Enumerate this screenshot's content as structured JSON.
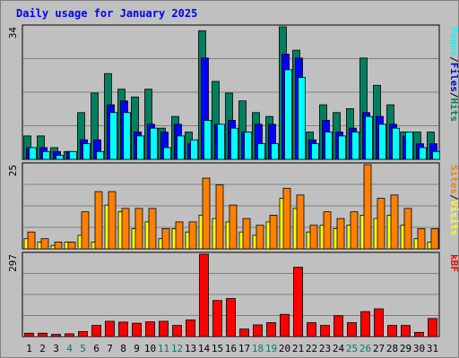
{
  "title": "Daily usage for January 2025",
  "colors": {
    "background": "#c0c0c0",
    "panel": "#c0c0c0",
    "title": "#0000ff",
    "pages": "#00ffff",
    "files": "#0000ff",
    "hits": "#00805f",
    "visits": "#ffff00",
    "sites": "#ff8000",
    "kbytes": "#ff0000",
    "weekend_label": "#00805f",
    "weekday_label": "#000000"
  },
  "chart_data": [
    {
      "type": "bar",
      "name": "hits-files-pages",
      "ymax": 34,
      "ymax_label": "34",
      "legend": [
        "Pages",
        "/",
        "Files",
        "/",
        "Hits"
      ],
      "categories": [
        "1",
        "2",
        "3",
        "4",
        "5",
        "6",
        "7",
        "8",
        "9",
        "10",
        "11",
        "12",
        "13",
        "14",
        "15",
        "16",
        "17",
        "18",
        "19",
        "20",
        "21",
        "22",
        "23",
        "24",
        "25",
        "26",
        "27",
        "28",
        "29",
        "30",
        "31"
      ],
      "series": [
        {
          "name": "Hits",
          "values": [
            6,
            6,
            3,
            2,
            12,
            17,
            22,
            18,
            16,
            18,
            8,
            11,
            7,
            33,
            20,
            17,
            15,
            12,
            11,
            34,
            28,
            7,
            14,
            12,
            13,
            26,
            19,
            14,
            7,
            7,
            7
          ]
        },
        {
          "name": "Files",
          "values": [
            3,
            3,
            2,
            2,
            5,
            5,
            14,
            15,
            7,
            9,
            7,
            9,
            4,
            26,
            9,
            10,
            7,
            9,
            9,
            27,
            26,
            5,
            10,
            7,
            8,
            12,
            11,
            9,
            6,
            4,
            4
          ]
        },
        {
          "name": "Pages",
          "values": [
            3,
            2,
            1,
            2,
            4,
            2,
            12,
            12,
            6,
            8,
            3,
            6,
            5,
            10,
            9,
            8,
            7,
            4,
            4,
            23,
            21,
            4,
            7,
            6,
            7,
            11,
            9,
            8,
            7,
            3,
            2
          ]
        }
      ],
      "weekend_days": [
        4,
        5,
        11,
        12,
        18,
        19,
        25,
        26
      ]
    },
    {
      "type": "bar",
      "name": "sites-visits",
      "ymax": 25,
      "ymax_label": "25",
      "legend": [
        "Sites",
        "/",
        "Visits"
      ],
      "categories": [
        "1",
        "2",
        "3",
        "4",
        "5",
        "6",
        "7",
        "8",
        "9",
        "10",
        "11",
        "12",
        "13",
        "14",
        "15",
        "16",
        "17",
        "18",
        "19",
        "20",
        "21",
        "22",
        "23",
        "24",
        "25",
        "26",
        "27",
        "28",
        "29",
        "30",
        "31"
      ],
      "series": [
        {
          "name": "Sites",
          "values": [
            5,
            3,
            2,
            2,
            11,
            17,
            17,
            12,
            12,
            12,
            6,
            8,
            8,
            21,
            19,
            13,
            9,
            7,
            10,
            18,
            16,
            7,
            11,
            9,
            11,
            25,
            15,
            16,
            12,
            6,
            6
          ]
        },
        {
          "name": "Visits",
          "values": [
            3,
            2,
            1,
            2,
            4,
            2,
            13,
            11,
            6,
            8,
            3,
            6,
            5,
            10,
            9,
            8,
            5,
            4,
            8,
            15,
            12,
            5,
            7,
            6,
            7,
            10,
            9,
            10,
            7,
            3,
            2
          ]
        }
      ]
    },
    {
      "type": "bar",
      "name": "kbytes",
      "ymax": 297,
      "ymax_label": "297",
      "legend": [
        "kB",
        "F"
      ],
      "categories": [
        "1",
        "2",
        "3",
        "4",
        "5",
        "6",
        "7",
        "8",
        "9",
        "10",
        "11",
        "12",
        "13",
        "14",
        "15",
        "16",
        "17",
        "18",
        "19",
        "20",
        "21",
        "22",
        "23",
        "24",
        "25",
        "26",
        "27",
        "28",
        "29",
        "30",
        "31"
      ],
      "series": [
        {
          "name": "kB F",
          "values": [
            12,
            12,
            8,
            10,
            18,
            40,
            55,
            52,
            48,
            53,
            55,
            40,
            60,
            297,
            130,
            137,
            27,
            42,
            50,
            80,
            250,
            50,
            40,
            75,
            50,
            90,
            100,
            40,
            40,
            15,
            65
          ]
        }
      ]
    }
  ]
}
